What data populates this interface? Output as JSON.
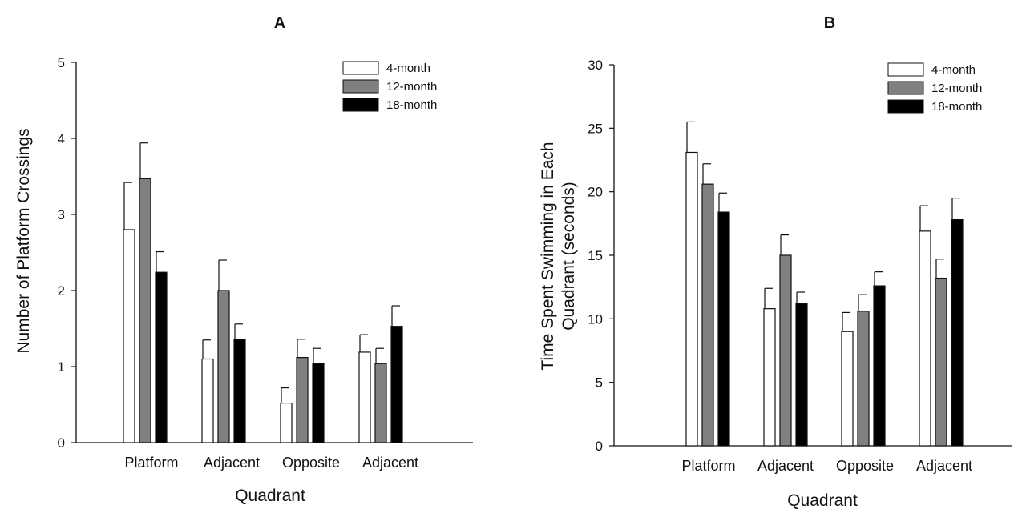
{
  "chart_data": [
    {
      "type": "bar",
      "title": "A",
      "xlabel": "Quadrant",
      "ylabel": "Number of Platform Crossings",
      "categories": [
        "Platform",
        "Adjacent",
        "Opposite",
        "Adjacent"
      ],
      "ylim": [
        0,
        5
      ],
      "yticks": [
        "0",
        "1",
        "2",
        "3",
        "4",
        "5"
      ],
      "legend_position": "top-right",
      "series": [
        {
          "name": "4-month",
          "color": "#ffffff",
          "values": [
            2.8,
            1.1,
            0.52,
            1.19
          ],
          "errors": [
            0.62,
            0.25,
            0.2,
            0.23
          ]
        },
        {
          "name": "12-month",
          "color": "#808080",
          "values": [
            3.47,
            2.0,
            1.12,
            1.04
          ],
          "errors": [
            0.47,
            0.4,
            0.24,
            0.2
          ]
        },
        {
          "name": "18-month",
          "color": "#000000",
          "values": [
            2.24,
            1.36,
            1.04,
            1.53
          ],
          "errors": [
            0.27,
            0.2,
            0.2,
            0.27
          ]
        }
      ]
    },
    {
      "type": "bar",
      "title": "B",
      "xlabel": "Quadrant",
      "ylabel": "Time Spent Swimming in Each Quadrant (seconds)",
      "ylabel_lines": [
        "Time Spent Swimming in Each",
        "Quadrant (seconds)"
      ],
      "categories": [
        "Platform",
        "Adjacent",
        "Opposite",
        "Adjacent"
      ],
      "ylim": [
        0,
        30
      ],
      "yticks": [
        "0",
        "5",
        "10",
        "15",
        "20",
        "25",
        "30"
      ],
      "legend_position": "top-right",
      "series": [
        {
          "name": "4-month",
          "color": "#ffffff",
          "values": [
            23.1,
            10.8,
            9.0,
            16.9
          ],
          "errors": [
            2.4,
            1.6,
            1.5,
            2.0
          ]
        },
        {
          "name": "12-month",
          "color": "#808080",
          "values": [
            20.6,
            15.0,
            10.6,
            13.2
          ],
          "errors": [
            1.6,
            1.6,
            1.3,
            1.5
          ]
        },
        {
          "name": "18-month",
          "color": "#000000",
          "values": [
            18.4,
            11.2,
            12.6,
            17.8
          ],
          "errors": [
            1.5,
            0.9,
            1.1,
            1.7
          ]
        }
      ]
    }
  ]
}
